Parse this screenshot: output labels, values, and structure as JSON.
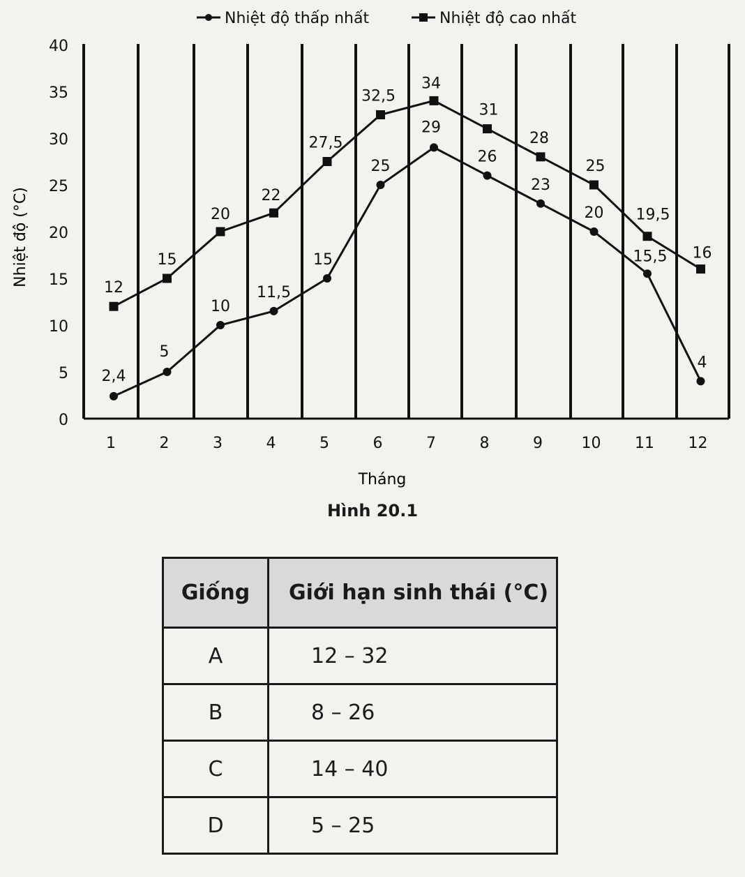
{
  "chart_data": {
    "type": "line",
    "categories": [
      "1",
      "2",
      "3",
      "4",
      "5",
      "6",
      "7",
      "8",
      "9",
      "10",
      "11",
      "12"
    ],
    "xlabel": "Tháng",
    "ylabel": "Nhiệt độ (°C)",
    "ylim": [
      0,
      40
    ],
    "yticks": [
      "0",
      "5",
      "10",
      "15",
      "20",
      "25",
      "30",
      "35",
      "40"
    ],
    "legend_position": "top",
    "series": [
      {
        "name": "Nhiệt độ thấp nhất",
        "marker": "circle",
        "values": [
          2.4,
          5,
          10,
          11.5,
          15,
          25,
          29,
          26,
          23,
          20,
          15.5,
          4
        ],
        "labels": [
          "2,4",
          "5",
          "10",
          "11,5",
          "15",
          "25",
          "29",
          "26",
          "23",
          "20",
          "15,5",
          "4"
        ]
      },
      {
        "name": "Nhiệt độ cao nhất",
        "marker": "square",
        "values": [
          12,
          15,
          20,
          22,
          27.5,
          32.5,
          34,
          31,
          28,
          25,
          19.5,
          16
        ],
        "labels": [
          "12",
          "15",
          "20",
          "22",
          "27,5",
          "32,5",
          "34",
          "31",
          "28",
          "25",
          "19,5",
          "16"
        ]
      }
    ]
  },
  "figure_caption": "Hình 20.1",
  "table": {
    "headers": [
      "Giống",
      "Giới hạn sinh thái (°C)"
    ],
    "rows": [
      [
        "A",
        "12 – 32"
      ],
      [
        "B",
        "8 – 26"
      ],
      [
        "C",
        "14 – 40"
      ],
      [
        "D",
        "5 – 25"
      ]
    ]
  }
}
